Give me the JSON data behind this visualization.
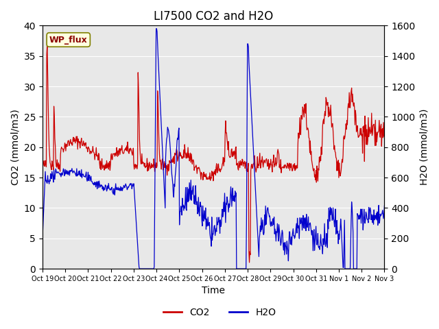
{
  "title": "LI7500 CO2 and H2O",
  "xlabel": "Time",
  "ylabel_left": "CO2 (mmol/m3)",
  "ylabel_right": "H2O (mmol/m3)",
  "annotation": "WP_flux",
  "ylim_left": [
    0,
    40
  ],
  "ylim_right": [
    0,
    1600
  ],
  "xtick_labels": [
    "Oct 19",
    "Oct 20",
    "Oct 21",
    "Oct 22",
    "Oct 23",
    "Oct 24",
    "Oct 25",
    "Oct 26",
    "Oct 27",
    "Oct 28",
    "Oct 29",
    "Oct 30",
    "Oct 31",
    "Nov 1",
    "Nov 2",
    "Nov 3"
  ],
  "co2_color": "#cc0000",
  "h2o_color": "#0000cc",
  "bg_color": "#e8e8e8",
  "legend_co2": "CO2",
  "legend_h2o": "H2O"
}
